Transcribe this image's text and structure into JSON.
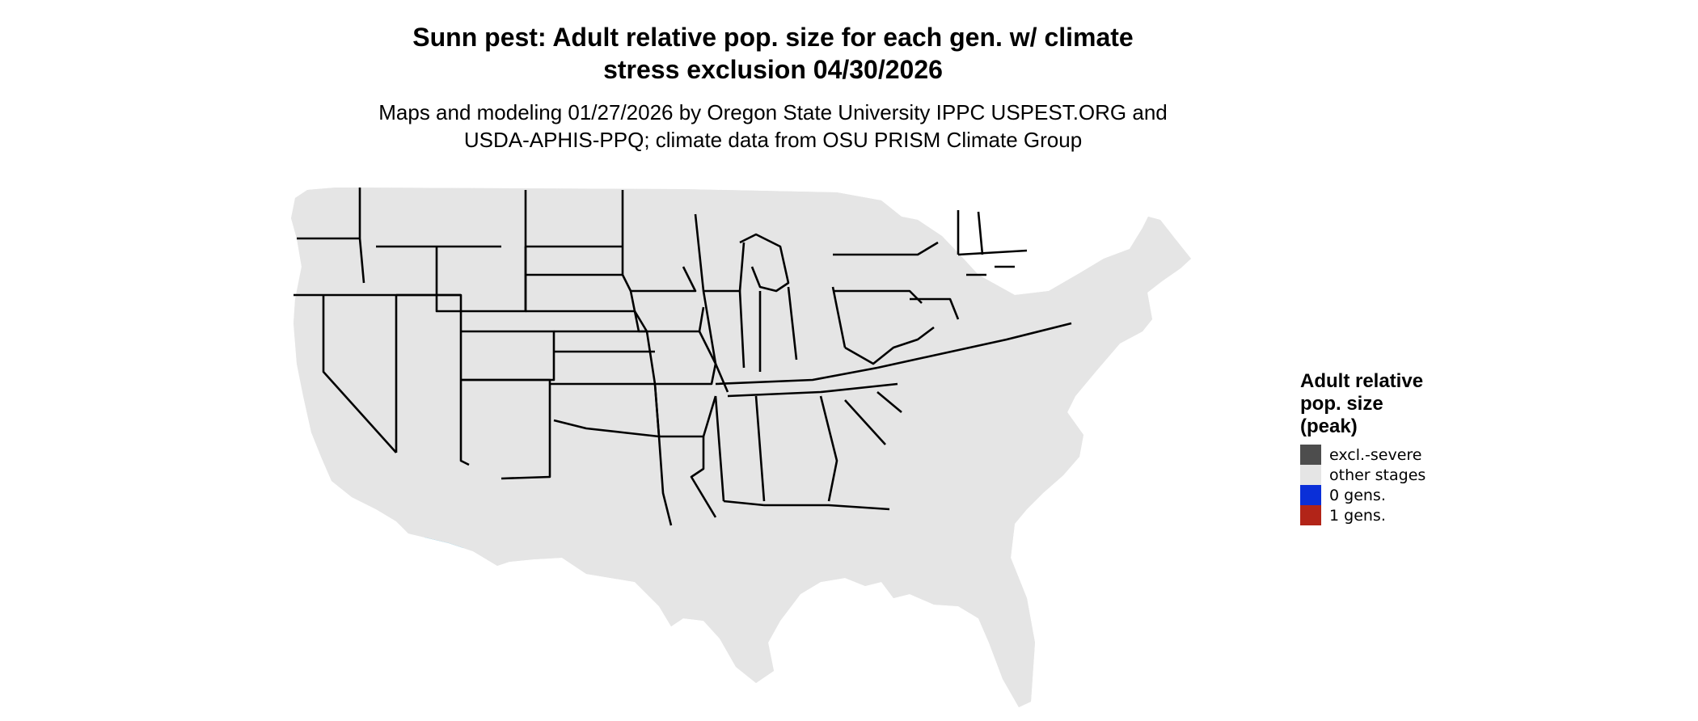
{
  "title_line1": "Sunn pest: Adult relative pop. size for each gen. w/ climate",
  "title_line2": "stress exclusion 04/30/2026",
  "subtitle_line1": "Maps and modeling 01/27/2026 by Oregon State University IPPC USPEST.ORG and",
  "subtitle_line2": "USDA-APHIS-PPQ; climate data from OSU PRISM Climate Group",
  "legend": {
    "title_lines": [
      "Adult relative",
      "pop. size",
      "(peak)"
    ],
    "items": [
      {
        "label": "excl.-severe",
        "color": "#4d4d4d"
      },
      {
        "label": "other stages",
        "color": "#e5e5e5"
      },
      {
        "label": "0 gens.",
        "color": "#0a2fd8"
      },
      {
        "label": "1 gens.",
        "color": "#b22418"
      }
    ]
  },
  "map_colors": {
    "land": "#e5e5e5",
    "border": "#000000",
    "light_blue": "#00b2f5",
    "mid_blue": "#0a2fd8",
    "dark_blue": "#001c9e"
  }
}
